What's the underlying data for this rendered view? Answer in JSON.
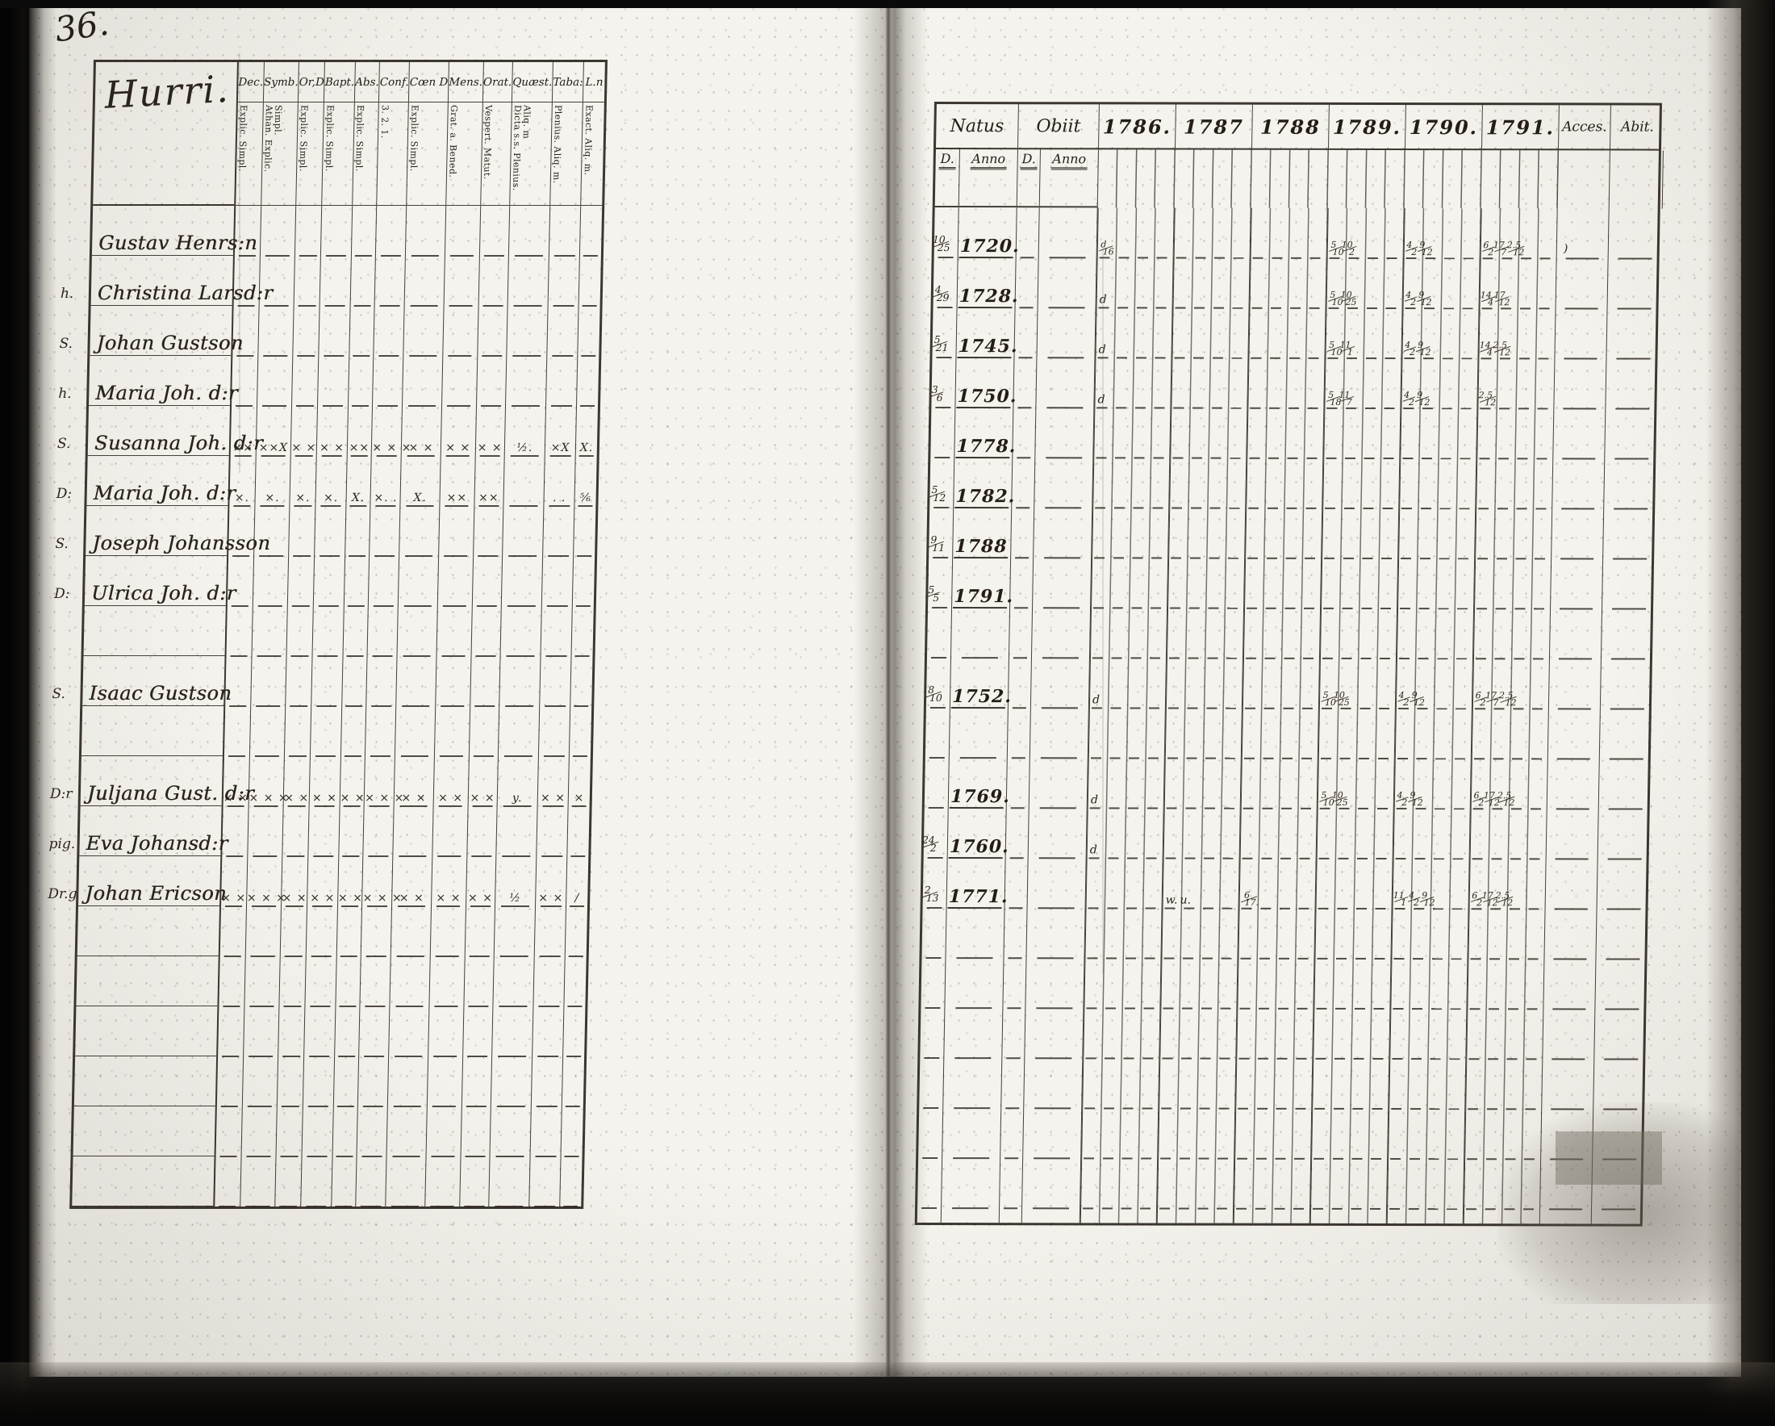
{
  "page": {
    "number": "36.",
    "paper_color": "#f5f3ed",
    "ink_color": "#262019",
    "background_color": "#070707"
  },
  "left_table": {
    "title": "Hurri.",
    "columns": [
      {
        "label": "Dec.",
        "sub": "Explic. Simpl."
      },
      {
        "label": "Symb.",
        "sub": "Athan. Explic. Simpl."
      },
      {
        "label": "Or,D",
        "sub": "Explic. Simpl."
      },
      {
        "label": "Bapt.",
        "sub": "Explic. Simpl."
      },
      {
        "label": "Abs.",
        "sub": "Explic. Simpl."
      },
      {
        "label": "Conf.",
        "sub": "3. 2. 1."
      },
      {
        "label": "Cœn D",
        "sub": "Explic. Simpl."
      },
      {
        "label": "Mens.",
        "sub": "Grat. a. Bened."
      },
      {
        "label": "Orat.",
        "sub": "Vespert. Matut."
      },
      {
        "label": "Quæst.",
        "sub": "Dicta s.s. Plenius. Aliq. m"
      },
      {
        "label": "Taba:",
        "sub": "Plenius. Aliq. m."
      },
      {
        "label": "L.n",
        "sub": "Exact. Aliq. m."
      }
    ],
    "rows": [
      {
        "prefix": "",
        "name": "Gustav Henrs:n",
        "marks": [
          "",
          "",
          "",
          "",
          "",
          "",
          "",
          "",
          "",
          "",
          "",
          ""
        ]
      },
      {
        "prefix": "h.",
        "name": "Christina Larsd:r",
        "marks": [
          "",
          "",
          "",
          "",
          "",
          "",
          "",
          "",
          "",
          "",
          "",
          ""
        ]
      },
      {
        "prefix": "S.",
        "name": "Johan Gustson",
        "marks": [
          "",
          "",
          "",
          "",
          "",
          "",
          "",
          "",
          "",
          "",
          "",
          ""
        ]
      },
      {
        "prefix": "h.",
        "name": "Maria Joh. d:r",
        "marks": [
          "",
          "",
          "",
          "",
          "",
          "",
          "",
          "",
          "",
          "",
          "",
          ""
        ]
      },
      {
        "prefix": "S.",
        "name": "Susanna Joh. d:r",
        "marks": [
          "××",
          "××X",
          "× ×",
          "× ×",
          "××",
          "× × ×",
          "× ×",
          "× ×",
          "× ×",
          "½.",
          "×X",
          "X."
        ]
      },
      {
        "prefix": "D:",
        "name": "Maria Joh. d:r",
        "marks": [
          "×.",
          "×.",
          "×.",
          "×.",
          "X.",
          "×. .",
          "X.",
          "××",
          "××",
          "",
          ". .",
          "⅚"
        ]
      },
      {
        "prefix": "S.",
        "name": "Joseph Johansson",
        "marks": [
          "",
          "",
          "",
          "",
          "",
          "",
          "",
          "",
          "",
          "",
          "",
          ""
        ]
      },
      {
        "prefix": "D:",
        "name": "Ulrica Joh. d:r",
        "marks": [
          "",
          "",
          "",
          "",
          "",
          "",
          "",
          "",
          "",
          "",
          "",
          ""
        ]
      },
      {
        "prefix": "",
        "name": "",
        "marks": [
          "",
          "",
          "",
          "",
          "",
          "",
          "",
          "",
          "",
          "",
          "",
          ""
        ]
      },
      {
        "prefix": "S.",
        "name": "Isaac Gustson",
        "marks": [
          "",
          "",
          "",
          "",
          "",
          "",
          "",
          "",
          "",
          "",
          "",
          ""
        ]
      },
      {
        "prefix": "",
        "name": "",
        "marks": [
          "",
          "",
          "",
          "",
          "",
          "",
          "",
          "",
          "",
          "",
          "",
          ""
        ]
      },
      {
        "prefix": "D:r",
        "name": "Juljana Gust. d:r",
        "marks": [
          "× ×",
          "× × ×",
          "× ×",
          "× ×",
          "× ×",
          "× × ×",
          "× ×",
          "× ×",
          "× ×",
          "y.",
          "× ×",
          "×"
        ]
      },
      {
        "prefix": "pig.",
        "name": "Eva Johansd:r",
        "marks": [
          "",
          "",
          "",
          "",
          "",
          "",
          "",
          "",
          "",
          "",
          "",
          ""
        ]
      },
      {
        "prefix": "Dr.g",
        "name": "Johan Ericson",
        "marks": [
          "× ×",
          "× × ×",
          "× ×",
          "× ×",
          "× ×",
          "× × ×",
          "× ×",
          "× ×",
          "× ×",
          "½",
          "× ×",
          "/"
        ]
      },
      {
        "prefix": "",
        "name": "",
        "marks": [
          "",
          "",
          "",
          "",
          "",
          "",
          "",
          "",
          "",
          "",
          "",
          ""
        ]
      },
      {
        "prefix": "",
        "name": "",
        "marks": [
          "",
          "",
          "",
          "",
          "",
          "",
          "",
          "",
          "",
          "",
          "",
          ""
        ]
      },
      {
        "prefix": "",
        "name": "",
        "marks": [
          "",
          "",
          "",
          "",
          "",
          "",
          "",
          "",
          "",
          "",
          "",
          ""
        ]
      },
      {
        "prefix": "",
        "name": "",
        "marks": [
          "",
          "",
          "",
          "",
          "",
          "",
          "",
          "",
          "",
          "",
          "",
          ""
        ]
      },
      {
        "prefix": "",
        "name": "",
        "marks": [
          "",
          "",
          "",
          "",
          "",
          "",
          "",
          "",
          "",
          "",
          "",
          ""
        ]
      },
      {
        "prefix": "",
        "name": "",
        "marks": [
          "",
          "",
          "",
          "",
          "",
          "",
          "",
          "",
          "",
          "",
          "",
          ""
        ]
      }
    ]
  },
  "right_table": {
    "headers": {
      "natus": "Natus",
      "obiit": "Obiit",
      "years": [
        "1786.",
        "1787",
        "1788",
        "1789.",
        "1790.",
        "1791."
      ],
      "acces": "Acces.",
      "abit": "Abit.",
      "sub": [
        "D.",
        "Anno",
        "D.",
        "Anno"
      ]
    },
    "rows": [
      {
        "d": "10/25",
        "anno": "1720.",
        "od": "",
        "oanno": "",
        "y86": "d/16",
        "y87": "",
        "y88": "",
        "y89": "5/10 10/2",
        "y90": "4/2 9/12",
        "y91": "6/2 17/7 2.5/12",
        "acces": ")",
        "abit": ""
      },
      {
        "d": "4/29",
        "anno": "1728.",
        "od": "",
        "oanno": "",
        "y86": "d",
        "y87": "",
        "y88": "",
        "y89": "5/10 10/25",
        "y90": "4/2 9/12",
        "y91": "14/4 17/12",
        "acces": "",
        "abit": ""
      },
      {
        "d": "5/21",
        "anno": "1745.",
        "od": "",
        "oanno": "",
        "y86": "d",
        "y87": "",
        "y88": "",
        "y89": "5/10 11/1",
        "y90": "4/2 9/12",
        "y91": "14/4 2.5/12",
        "acces": "",
        "abit": ""
      },
      {
        "d": "3/6",
        "anno": "1750.",
        "od": "",
        "oanno": "",
        "y86": "d",
        "y87": "",
        "y88": "",
        "y89": "5/18 11/7",
        "y90": "4/2 9/12",
        "y91": "2.5/12",
        "acces": "",
        "abit": ""
      },
      {
        "d": "",
        "anno": "1778.",
        "od": "",
        "oanno": "",
        "y86": "",
        "y87": "",
        "y88": "",
        "y89": "",
        "y90": "",
        "y91": "",
        "acces": "",
        "abit": ""
      },
      {
        "d": "5/12",
        "anno": "1782.",
        "od": "",
        "oanno": "",
        "y86": "",
        "y87": "",
        "y88": "",
        "y89": "",
        "y90": "",
        "y91": "",
        "acces": "",
        "abit": ""
      },
      {
        "d": "9/11",
        "anno": "1788",
        "od": "",
        "oanno": "",
        "y86": "",
        "y87": "",
        "y88": "",
        "y89": "",
        "y90": "",
        "y91": "",
        "acces": "",
        "abit": ""
      },
      {
        "d": "5/5",
        "anno": "1791.",
        "od": "",
        "oanno": "",
        "y86": "",
        "y87": "",
        "y88": "",
        "y89": "",
        "y90": "",
        "y91": "",
        "acces": "",
        "abit": ""
      },
      {
        "d": "",
        "anno": "",
        "od": "",
        "oanno": "",
        "y86": "",
        "y87": "",
        "y88": "",
        "y89": "",
        "y90": "",
        "y91": "",
        "acces": "",
        "abit": ""
      },
      {
        "d": "8/10",
        "anno": "1752.",
        "od": "",
        "oanno": "",
        "y86": "d",
        "y87": "",
        "y88": "",
        "y89": "5/10 10/25",
        "y90": "4/2 9/12",
        "y91": "6/2 17/7 2.5/12",
        "acces": "",
        "abit": ""
      },
      {
        "d": "",
        "anno": "",
        "od": "",
        "oanno": "",
        "y86": "",
        "y87": "",
        "y88": "",
        "y89": "",
        "y90": "",
        "y91": "",
        "acces": "",
        "abit": ""
      },
      {
        "d": "",
        "anno": "1769.",
        "od": "",
        "oanno": "",
        "y86": "d",
        "y87": "",
        "y88": "",
        "y89": "5/10 10/25",
        "y90": "4/2 9/12",
        "y91": "6/2 17/12 2.5/12",
        "acces": "",
        "abit": ""
      },
      {
        "d": "24/2",
        "anno": "1760.",
        "od": "",
        "oanno": "",
        "y86": "d",
        "y87": "",
        "y88": "",
        "y89": "",
        "y90": "",
        "y91": "",
        "acces": "",
        "abit": ""
      },
      {
        "d": "2/13",
        "anno": "1771.",
        "od": "",
        "oanno": "",
        "y86": "",
        "y87": "w. u.",
        "y88": "6/17.",
        "y89": "",
        "y90": "11/1 4/2 9/12",
        "y91": "6/2 17/12 2.5/12",
        "acces": "",
        "abit": ""
      },
      {
        "d": "",
        "anno": "",
        "od": "",
        "oanno": "",
        "y86": "",
        "y87": "",
        "y88": "",
        "y89": "",
        "y90": "",
        "y91": "",
        "acces": "",
        "abit": ""
      },
      {
        "d": "",
        "anno": "",
        "od": "",
        "oanno": "",
        "y86": "",
        "y87": "",
        "y88": "",
        "y89": "",
        "y90": "",
        "y91": "",
        "acces": "",
        "abit": ""
      },
      {
        "d": "",
        "anno": "",
        "od": "",
        "oanno": "",
        "y86": "",
        "y87": "",
        "y88": "",
        "y89": "",
        "y90": "",
        "y91": "",
        "acces": "",
        "abit": ""
      },
      {
        "d": "",
        "anno": "",
        "od": "",
        "oanno": "",
        "y86": "",
        "y87": "",
        "y88": "",
        "y89": "",
        "y90": "",
        "y91": "",
        "acces": "",
        "abit": ""
      },
      {
        "d": "",
        "anno": "",
        "od": "",
        "oanno": "",
        "y86": "",
        "y87": "",
        "y88": "",
        "y89": "",
        "y90": "",
        "y91": "",
        "acces": "",
        "abit": ""
      },
      {
        "d": "",
        "anno": "",
        "od": "",
        "oanno": "",
        "y86": "",
        "y87": "",
        "y88": "",
        "y89": "",
        "y90": "",
        "y91": "",
        "acces": "",
        "abit": ""
      }
    ]
  }
}
